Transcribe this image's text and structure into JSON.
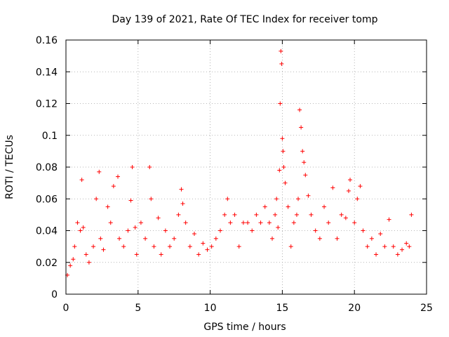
{
  "chart_data": {
    "type": "scatter",
    "title": "Day 139 of 2021, Rate Of TEC Index for receiver tomp",
    "xlabel": "GPS time / hours",
    "ylabel": "ROTI / TECUs",
    "xlim": [
      0,
      25
    ],
    "ylim": [
      0,
      0.16
    ],
    "xticks": [
      0,
      5,
      10,
      15,
      20,
      25
    ],
    "xtick_labels": [
      "0",
      "5",
      "10",
      "15",
      "20",
      "25"
    ],
    "yticks": [
      0,
      0.02,
      0.04,
      0.06,
      0.08,
      0.1,
      0.12,
      0.14,
      0.16
    ],
    "ytick_labels": [
      "0",
      "0.02",
      "0.04",
      "0.06",
      "0.08",
      "0.1",
      "0.12",
      "0.14",
      "0.16"
    ],
    "grid": true,
    "marker": "+",
    "marker_color": "#ff0000",
    "series": [
      {
        "name": "ROTI",
        "x": [
          0.1,
          0.3,
          0.5,
          0.6,
          0.8,
          1.0,
          1.1,
          1.2,
          1.4,
          1.6,
          1.9,
          2.1,
          2.3,
          2.4,
          2.6,
          2.9,
          3.1,
          3.3,
          3.6,
          3.7,
          4.0,
          4.3,
          4.5,
          4.6,
          4.8,
          4.9,
          5.2,
          5.5,
          5.8,
          5.9,
          6.1,
          6.4,
          6.6,
          6.9,
          7.2,
          7.5,
          7.8,
          8.0,
          8.1,
          8.3,
          8.6,
          8.9,
          9.2,
          9.5,
          9.8,
          10.1,
          10.4,
          10.7,
          11.0,
          11.2,
          11.4,
          11.7,
          12.0,
          12.3,
          12.6,
          12.9,
          13.2,
          13.5,
          13.8,
          14.1,
          14.3,
          14.5,
          14.6,
          14.7,
          14.8,
          14.85,
          14.9,
          14.95,
          15.0,
          15.05,
          15.1,
          15.2,
          15.4,
          15.6,
          15.8,
          16.0,
          16.1,
          16.2,
          16.3,
          16.4,
          16.5,
          16.6,
          16.8,
          17.0,
          17.3,
          17.6,
          17.9,
          18.2,
          18.5,
          18.8,
          19.1,
          19.4,
          19.6,
          19.7,
          20.0,
          20.2,
          20.4,
          20.6,
          20.9,
          21.2,
          21.5,
          21.8,
          22.1,
          22.4,
          22.7,
          23.0,
          23.3,
          23.6,
          23.8,
          23.95
        ],
        "y": [
          0.012,
          0.018,
          0.022,
          0.03,
          0.045,
          0.04,
          0.072,
          0.042,
          0.025,
          0.02,
          0.03,
          0.06,
          0.077,
          0.035,
          0.028,
          0.055,
          0.045,
          0.068,
          0.074,
          0.035,
          0.03,
          0.04,
          0.059,
          0.08,
          0.042,
          0.025,
          0.045,
          0.035,
          0.08,
          0.06,
          0.03,
          0.048,
          0.025,
          0.04,
          0.03,
          0.035,
          0.05,
          0.066,
          0.057,
          0.045,
          0.03,
          0.038,
          0.025,
          0.032,
          0.028,
          0.03,
          0.035,
          0.04,
          0.05,
          0.06,
          0.045,
          0.05,
          0.03,
          0.045,
          0.045,
          0.04,
          0.05,
          0.045,
          0.055,
          0.045,
          0.035,
          0.05,
          0.06,
          0.042,
          0.078,
          0.12,
          0.153,
          0.145,
          0.098,
          0.09,
          0.08,
          0.07,
          0.055,
          0.03,
          0.045,
          0.05,
          0.06,
          0.116,
          0.105,
          0.09,
          0.083,
          0.075,
          0.062,
          0.05,
          0.04,
          0.035,
          0.055,
          0.045,
          0.067,
          0.035,
          0.05,
          0.048,
          0.065,
          0.072,
          0.045,
          0.06,
          0.068,
          0.04,
          0.03,
          0.035,
          0.025,
          0.038,
          0.03,
          0.047,
          0.03,
          0.025,
          0.028,
          0.032,
          0.03,
          0.05
        ]
      }
    ]
  }
}
